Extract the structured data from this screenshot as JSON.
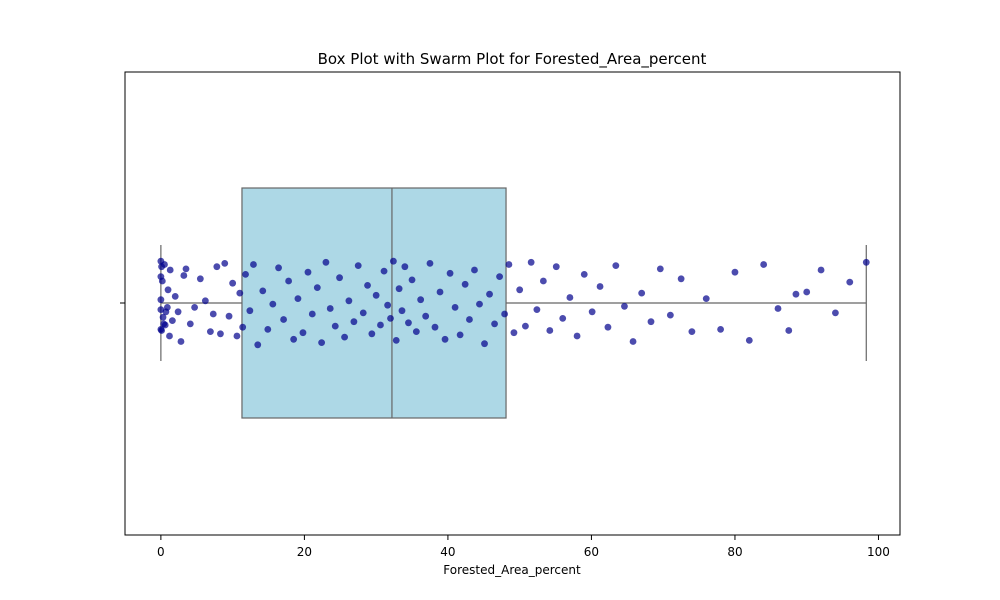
{
  "chart_data": {
    "type": "box",
    "title": "Box Plot with Swarm Plot for Forested_Area_percent",
    "xlabel": "Forested_Area_percent",
    "ylabel": "",
    "xlim": [
      -5,
      103
    ],
    "xticks": [
      0,
      20,
      40,
      60,
      80,
      100
    ],
    "xtick_labels": [
      "0",
      "20",
      "40",
      "60",
      "80",
      "100"
    ],
    "grid": false,
    "box": {
      "whisker_low": 0.0,
      "q1": 11.3,
      "median": 32.2,
      "q3": 48.1,
      "whisker_high": 98.3
    },
    "box_color": "#add8e6",
    "box_edge_color": "#666666",
    "point_color": "#00008b",
    "points": [
      {
        "x": 0.0,
        "j": -0.38
      },
      {
        "x": 0.0,
        "j": -0.24
      },
      {
        "x": 0.0,
        "j": -0.03
      },
      {
        "x": 0.0,
        "j": 0.06
      },
      {
        "x": 0.0,
        "j": 0.24
      },
      {
        "x": 0.1,
        "j": -0.33
      },
      {
        "x": 0.1,
        "j": 0.25
      },
      {
        "x": 0.2,
        "j": -0.2
      },
      {
        "x": 0.3,
        "j": 0.13
      },
      {
        "x": 0.4,
        "j": 0.19
      },
      {
        "x": 0.5,
        "j": -0.35
      },
      {
        "x": 0.6,
        "j": 0.2
      },
      {
        "x": 0.7,
        "j": 0.08
      },
      {
        "x": 0.9,
        "j": 0.04
      },
      {
        "x": 1.0,
        "j": -0.12
      },
      {
        "x": 1.2,
        "j": 0.3
      },
      {
        "x": 1.3,
        "j": -0.3
      },
      {
        "x": 1.6,
        "j": 0.16
      },
      {
        "x": 2.0,
        "j": -0.06
      },
      {
        "x": 2.4,
        "j": 0.08
      },
      {
        "x": 2.8,
        "j": 0.35
      },
      {
        "x": 3.2,
        "j": -0.25
      },
      {
        "x": 3.5,
        "j": -0.31
      },
      {
        "x": 4.1,
        "j": 0.19
      },
      {
        "x": 4.7,
        "j": 0.04
      },
      {
        "x": 5.5,
        "j": -0.22
      },
      {
        "x": 6.2,
        "j": -0.02
      },
      {
        "x": 6.9,
        "j": 0.26
      },
      {
        "x": 7.3,
        "j": 0.1
      },
      {
        "x": 7.8,
        "j": -0.33
      },
      {
        "x": 8.3,
        "j": 0.28
      },
      {
        "x": 8.9,
        "j": -0.36
      },
      {
        "x": 9.5,
        "j": 0.12
      },
      {
        "x": 10.0,
        "j": -0.18
      },
      {
        "x": 10.6,
        "j": 0.3
      },
      {
        "x": 11.0,
        "j": -0.09
      },
      {
        "x": 11.4,
        "j": 0.22
      },
      {
        "x": 11.8,
        "j": -0.26
      },
      {
        "x": 12.4,
        "j": 0.07
      },
      {
        "x": 12.9,
        "j": -0.35
      },
      {
        "x": 13.5,
        "j": 0.38
      },
      {
        "x": 14.2,
        "j": -0.11
      },
      {
        "x": 14.9,
        "j": 0.24
      },
      {
        "x": 15.6,
        "j": 0.01
      },
      {
        "x": 16.4,
        "j": -0.32
      },
      {
        "x": 17.1,
        "j": 0.15
      },
      {
        "x": 17.8,
        "j": -0.2
      },
      {
        "x": 18.5,
        "j": 0.33
      },
      {
        "x": 19.1,
        "j": -0.04
      },
      {
        "x": 19.8,
        "j": 0.27
      },
      {
        "x": 20.5,
        "j": -0.28
      },
      {
        "x": 21.1,
        "j": 0.1
      },
      {
        "x": 21.8,
        "j": -0.14
      },
      {
        "x": 22.4,
        "j": 0.36
      },
      {
        "x": 23.0,
        "j": -0.37
      },
      {
        "x": 23.6,
        "j": 0.05
      },
      {
        "x": 24.3,
        "j": 0.21
      },
      {
        "x": 24.9,
        "j": -0.23
      },
      {
        "x": 25.6,
        "j": 0.31
      },
      {
        "x": 26.2,
        "j": -0.02
      },
      {
        "x": 26.9,
        "j": 0.17
      },
      {
        "x": 27.5,
        "j": -0.34
      },
      {
        "x": 28.2,
        "j": 0.09
      },
      {
        "x": 28.8,
        "j": -0.16
      },
      {
        "x": 29.4,
        "j": 0.28
      },
      {
        "x": 30.0,
        "j": -0.07
      },
      {
        "x": 30.6,
        "j": 0.2
      },
      {
        "x": 31.1,
        "j": -0.29
      },
      {
        "x": 31.6,
        "j": 0.02
      },
      {
        "x": 32.0,
        "j": 0.14
      },
      {
        "x": 32.4,
        "j": -0.38
      },
      {
        "x": 32.8,
        "j": 0.34
      },
      {
        "x": 33.2,
        "j": -0.13
      },
      {
        "x": 33.6,
        "j": 0.07
      },
      {
        "x": 34.0,
        "j": -0.33
      },
      {
        "x": 34.5,
        "j": 0.18
      },
      {
        "x": 35.0,
        "j": -0.21
      },
      {
        "x": 35.6,
        "j": 0.26
      },
      {
        "x": 36.2,
        "j": -0.03
      },
      {
        "x": 36.9,
        "j": 0.12
      },
      {
        "x": 37.5,
        "j": -0.36
      },
      {
        "x": 38.2,
        "j": 0.22
      },
      {
        "x": 38.9,
        "j": -0.1
      },
      {
        "x": 39.6,
        "j": 0.33
      },
      {
        "x": 40.3,
        "j": -0.27
      },
      {
        "x": 41.0,
        "j": 0.04
      },
      {
        "x": 41.7,
        "j": 0.29
      },
      {
        "x": 42.4,
        "j": -0.17
      },
      {
        "x": 43.0,
        "j": 0.15
      },
      {
        "x": 43.7,
        "j": -0.3
      },
      {
        "x": 44.4,
        "j": 0.01
      },
      {
        "x": 45.1,
        "j": 0.37
      },
      {
        "x": 45.8,
        "j": -0.08
      },
      {
        "x": 46.5,
        "j": 0.19
      },
      {
        "x": 47.2,
        "j": -0.24
      },
      {
        "x": 47.9,
        "j": 0.1
      },
      {
        "x": 48.5,
        "j": -0.35
      },
      {
        "x": 49.2,
        "j": 0.27
      },
      {
        "x": 50.0,
        "j": -0.12
      },
      {
        "x": 50.8,
        "j": 0.21
      },
      {
        "x": 51.6,
        "j": -0.37
      },
      {
        "x": 52.4,
        "j": 0.06
      },
      {
        "x": 53.3,
        "j": -0.2
      },
      {
        "x": 54.2,
        "j": 0.25
      },
      {
        "x": 55.1,
        "j": -0.33
      },
      {
        "x": 56.0,
        "j": 0.14
      },
      {
        "x": 57.0,
        "j": -0.05
      },
      {
        "x": 58.0,
        "j": 0.3
      },
      {
        "x": 59.0,
        "j": -0.26
      },
      {
        "x": 60.1,
        "j": 0.08
      },
      {
        "x": 61.2,
        "j": -0.15
      },
      {
        "x": 62.3,
        "j": 0.22
      },
      {
        "x": 63.4,
        "j": -0.34
      },
      {
        "x": 64.6,
        "j": 0.03
      },
      {
        "x": 65.8,
        "j": 0.35
      },
      {
        "x": 67.0,
        "j": -0.09
      },
      {
        "x": 68.3,
        "j": 0.17
      },
      {
        "x": 69.6,
        "j": -0.31
      },
      {
        "x": 71.0,
        "j": 0.11
      },
      {
        "x": 72.5,
        "j": -0.22
      },
      {
        "x": 74.0,
        "j": 0.26
      },
      {
        "x": 76.0,
        "j": -0.04
      },
      {
        "x": 78.0,
        "j": 0.24
      },
      {
        "x": 80.0,
        "j": -0.28
      },
      {
        "x": 82.0,
        "j": 0.34
      },
      {
        "x": 84.0,
        "j": -0.35
      },
      {
        "x": 86.0,
        "j": 0.05
      },
      {
        "x": 87.5,
        "j": 0.25
      },
      {
        "x": 88.5,
        "j": -0.08
      },
      {
        "x": 90.0,
        "j": -0.1
      },
      {
        "x": 92.0,
        "j": -0.3
      },
      {
        "x": 94.0,
        "j": 0.09
      },
      {
        "x": 96.0,
        "j": -0.19
      },
      {
        "x": 98.3,
        "j": -0.37
      }
    ]
  }
}
